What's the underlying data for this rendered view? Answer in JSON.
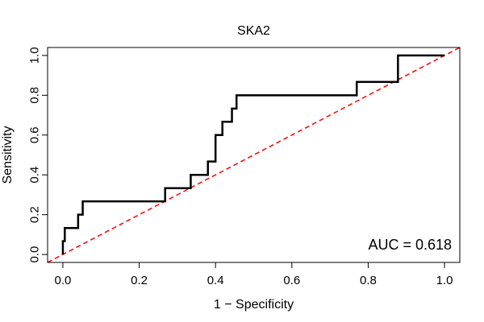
{
  "chart_data": {
    "type": "line",
    "title": "SKA2",
    "xlabel": "1 − Specificity",
    "ylabel": "Sensitivity",
    "xlim": [
      -0.04,
      1.04
    ],
    "ylim": [
      -0.04,
      1.04
    ],
    "x_ticks": [
      0.0,
      0.2,
      0.4,
      0.6,
      0.8,
      1.0
    ],
    "x_tick_labels": [
      "0.0",
      "0.2",
      "0.4",
      "0.6",
      "0.8",
      "1.0"
    ],
    "y_ticks": [
      0.0,
      0.2,
      0.4,
      0.6,
      0.8,
      1.0
    ],
    "y_tick_labels": [
      "0.0",
      "0.2",
      "0.4",
      "0.6",
      "0.8",
      "1.0"
    ],
    "grid": false,
    "annotation": "AUC = 0.618",
    "series": [
      {
        "name": "ROC curve",
        "color": "#000000",
        "style": "solid",
        "points": [
          [
            0.0,
            0.0
          ],
          [
            0.0,
            0.067
          ],
          [
            0.005,
            0.067
          ],
          [
            0.005,
            0.133
          ],
          [
            0.04,
            0.133
          ],
          [
            0.04,
            0.2
          ],
          [
            0.052,
            0.2
          ],
          [
            0.052,
            0.267
          ],
          [
            0.268,
            0.267
          ],
          [
            0.268,
            0.333
          ],
          [
            0.335,
            0.333
          ],
          [
            0.335,
            0.4
          ],
          [
            0.38,
            0.4
          ],
          [
            0.38,
            0.467
          ],
          [
            0.4,
            0.467
          ],
          [
            0.4,
            0.6
          ],
          [
            0.418,
            0.6
          ],
          [
            0.418,
            0.667
          ],
          [
            0.443,
            0.667
          ],
          [
            0.443,
            0.733
          ],
          [
            0.455,
            0.733
          ],
          [
            0.455,
            0.8
          ],
          [
            0.77,
            0.8
          ],
          [
            0.77,
            0.867
          ],
          [
            0.878,
            0.867
          ],
          [
            0.878,
            1.0
          ],
          [
            1.0,
            1.0
          ]
        ]
      },
      {
        "name": "chance line",
        "color": "#ff0000",
        "style": "dashed",
        "points": [
          [
            -0.04,
            -0.04
          ],
          [
            1.04,
            1.04
          ]
        ]
      }
    ]
  }
}
